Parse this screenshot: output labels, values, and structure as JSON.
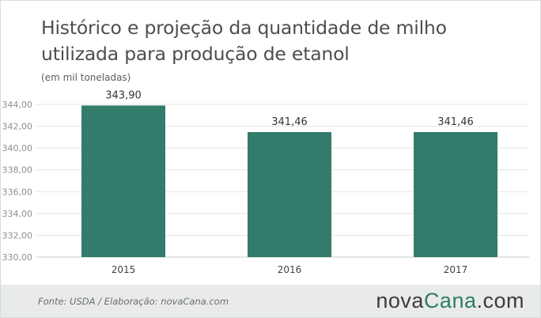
{
  "chart_data": {
    "type": "bar",
    "title": "Histórico e projeção da quantidade de milho utilizada para produção de etanol",
    "subtitle": "(em mil toneladas)",
    "categories": [
      "2015",
      "2016",
      "2017"
    ],
    "values": [
      343.9,
      341.46,
      341.46
    ],
    "value_labels": [
      "343,90",
      "341,46",
      "341,46"
    ],
    "ylim": [
      330,
      344
    ],
    "yticks": [
      330,
      332,
      334,
      336,
      338,
      340,
      342,
      344
    ],
    "ytick_labels": [
      "330,00",
      "332,00",
      "334,00",
      "336,00",
      "338,00",
      "340,00",
      "342,00",
      "344,00"
    ],
    "grid": true,
    "bar_color": "#337b6b"
  },
  "footer": {
    "source": "Fonte:  USDA / Elaboração:  novaCana.com",
    "logo_part1": "nova",
    "logo_part2": "Cana",
    "logo_part3": ".com"
  }
}
